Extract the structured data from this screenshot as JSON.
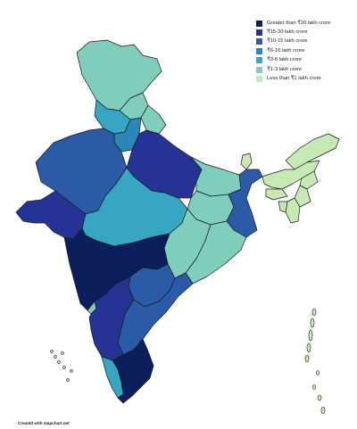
{
  "legend": [
    {
      "label": "Greater than ₹20 lakh crore",
      "color": "#0b1f5c"
    },
    {
      "label": "₹15-20 lakh crore",
      "color": "#253494"
    },
    {
      "label": "₹10-15 lakh crore",
      "color": "#2b5aa6"
    },
    {
      "label": "₹6-10 lakh crore",
      "color": "#2a87b8"
    },
    {
      "label": "₹3-6 lakh crore",
      "color": "#36a6c2"
    },
    {
      "label": "₹1-3 lakh crore",
      "color": "#7fcdbb"
    },
    {
      "label": "Less than ₹1 lakh crore",
      "color": "#c7e9b4"
    }
  ],
  "credit": "Created with mapchart.net"
}
